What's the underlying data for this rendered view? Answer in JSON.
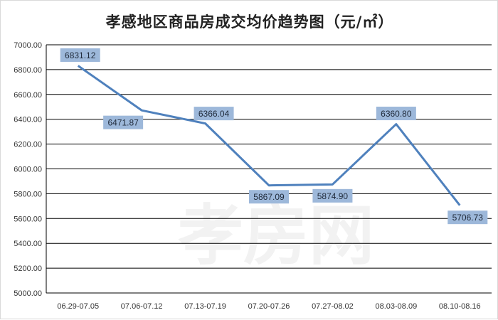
{
  "chart_data": {
    "type": "line",
    "title": "孝感地区商品房成交均价趋势图（元/㎡）",
    "categories": [
      "06.29-07.05",
      "07.06-07.12",
      "07.13-07.19",
      "07.20-07.26",
      "07.27-08.02",
      "08.03-08.09",
      "08.10-08.16"
    ],
    "series": [
      {
        "values": [
          6831.12,
          6471.87,
          6366.04,
          5867.09,
          5874.9,
          6360.8,
          5706.73
        ],
        "labels": [
          "6831.12",
          "6471.87",
          "6366.04",
          "5867.09",
          "5874.90",
          "6360.80",
          "5706.73"
        ]
      }
    ],
    "ylim": [
      5000,
      7000
    ],
    "yticks": [
      "5000.00",
      "5200.00",
      "5400.00",
      "5600.00",
      "5800.00",
      "6000.00",
      "6200.00",
      "6400.00",
      "6600.00",
      "6800.00",
      "7000.00"
    ],
    "grid": true,
    "legend": "none",
    "watermark": "孝房网",
    "colors": {
      "line": "#4f81bd",
      "label_bg": "#9db8da",
      "grid": "#000000",
      "watermark": "#f2f2f2"
    }
  }
}
